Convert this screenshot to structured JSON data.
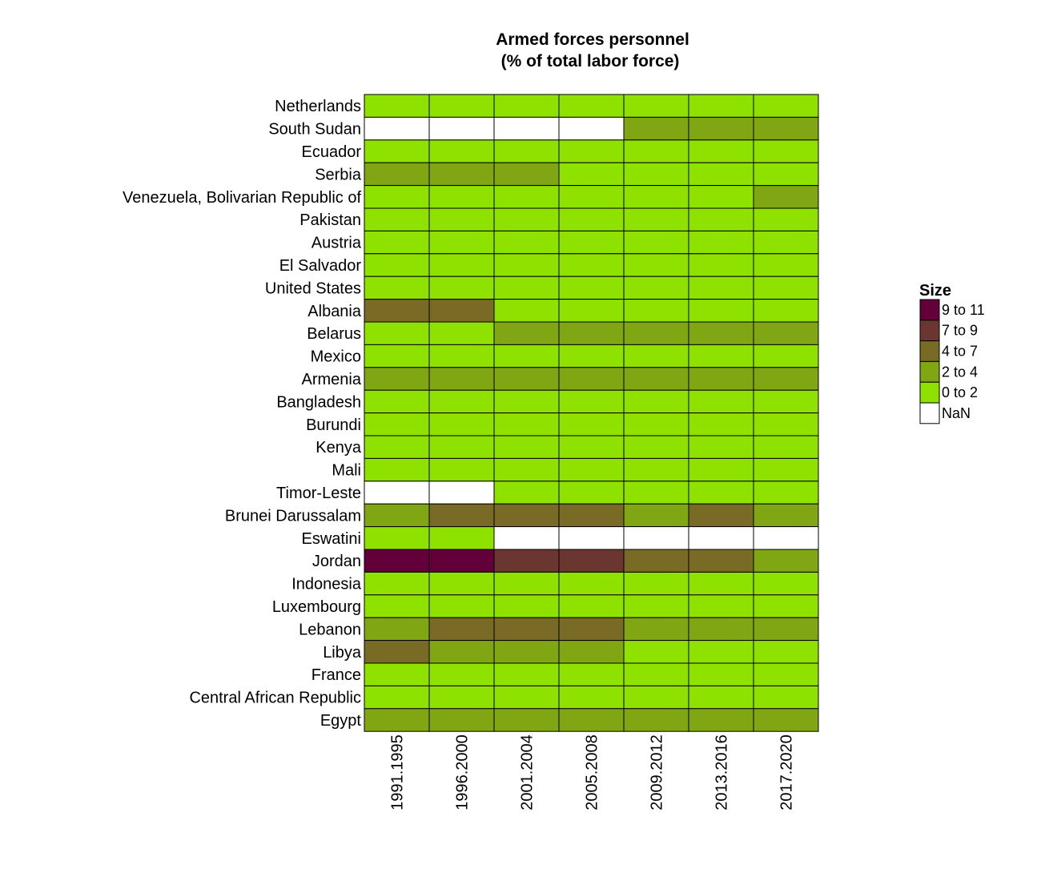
{
  "chart_data": {
    "type": "heatmap",
    "title_line1": "Armed forces personnel",
    "title_line2": "(% of total labor force)",
    "xlabel": "",
    "ylabel": "",
    "x_categories": [
      "1991.1995",
      "1996.2000",
      "2001.2004",
      "2005.2008",
      "2009.2012",
      "2013.2016",
      "2017.2020"
    ],
    "y_categories": [
      "Netherlands",
      "South Sudan",
      "Ecuador",
      "Serbia",
      "Venezuela, Bolivarian Republic of",
      "Pakistan",
      "Austria",
      "El Salvador",
      "United States",
      "Albania",
      "Belarus",
      "Mexico",
      "Armenia",
      "Bangladesh",
      "Burundi",
      "Kenya",
      "Mali",
      "Timor-Leste",
      "Brunei Darussalam",
      "Eswatini",
      "Jordan",
      "Indonesia",
      "Luxembourg",
      "Lebanon",
      "Libya",
      "France",
      "Central African Republic",
      "Egypt"
    ],
    "bin_labels": [
      "0 to 2",
      "2 to 4",
      "4 to 7",
      "7 to 9",
      "9 to 11",
      "NaN"
    ],
    "colors": {
      "0 to 2": "#8fe100",
      "2 to 4": "#80a614",
      "4 to 7": "#796b26",
      "7 to 9": "#6b3530",
      "9 to 11": "#630039",
      "NaN": "#ffffff"
    },
    "cells": [
      [
        "0 to 2",
        "0 to 2",
        "0 to 2",
        "0 to 2",
        "0 to 2",
        "0 to 2",
        "0 to 2"
      ],
      [
        "NaN",
        "NaN",
        "NaN",
        "NaN",
        "2 to 4",
        "2 to 4",
        "2 to 4"
      ],
      [
        "0 to 2",
        "0 to 2",
        "0 to 2",
        "0 to 2",
        "0 to 2",
        "0 to 2",
        "0 to 2"
      ],
      [
        "2 to 4",
        "2 to 4",
        "2 to 4",
        "0 to 2",
        "0 to 2",
        "0 to 2",
        "0 to 2"
      ],
      [
        "0 to 2",
        "0 to 2",
        "0 to 2",
        "0 to 2",
        "0 to 2",
        "0 to 2",
        "2 to 4"
      ],
      [
        "0 to 2",
        "0 to 2",
        "0 to 2",
        "0 to 2",
        "0 to 2",
        "0 to 2",
        "0 to 2"
      ],
      [
        "0 to 2",
        "0 to 2",
        "0 to 2",
        "0 to 2",
        "0 to 2",
        "0 to 2",
        "0 to 2"
      ],
      [
        "0 to 2",
        "0 to 2",
        "0 to 2",
        "0 to 2",
        "0 to 2",
        "0 to 2",
        "0 to 2"
      ],
      [
        "0 to 2",
        "0 to 2",
        "0 to 2",
        "0 to 2",
        "0 to 2",
        "0 to 2",
        "0 to 2"
      ],
      [
        "4 to 7",
        "4 to 7",
        "0 to 2",
        "0 to 2",
        "0 to 2",
        "0 to 2",
        "0 to 2"
      ],
      [
        "0 to 2",
        "0 to 2",
        "2 to 4",
        "2 to 4",
        "2 to 4",
        "2 to 4",
        "2 to 4"
      ],
      [
        "0 to 2",
        "0 to 2",
        "0 to 2",
        "0 to 2",
        "0 to 2",
        "0 to 2",
        "0 to 2"
      ],
      [
        "2 to 4",
        "2 to 4",
        "2 to 4",
        "2 to 4",
        "2 to 4",
        "2 to 4",
        "2 to 4"
      ],
      [
        "0 to 2",
        "0 to 2",
        "0 to 2",
        "0 to 2",
        "0 to 2",
        "0 to 2",
        "0 to 2"
      ],
      [
        "0 to 2",
        "0 to 2",
        "0 to 2",
        "0 to 2",
        "0 to 2",
        "0 to 2",
        "0 to 2"
      ],
      [
        "0 to 2",
        "0 to 2",
        "0 to 2",
        "0 to 2",
        "0 to 2",
        "0 to 2",
        "0 to 2"
      ],
      [
        "0 to 2",
        "0 to 2",
        "0 to 2",
        "0 to 2",
        "0 to 2",
        "0 to 2",
        "0 to 2"
      ],
      [
        "NaN",
        "NaN",
        "0 to 2",
        "0 to 2",
        "0 to 2",
        "0 to 2",
        "0 to 2"
      ],
      [
        "2 to 4",
        "4 to 7",
        "4 to 7",
        "4 to 7",
        "2 to 4",
        "4 to 7",
        "2 to 4"
      ],
      [
        "0 to 2",
        "0 to 2",
        "NaN",
        "NaN",
        "NaN",
        "NaN",
        "NaN"
      ],
      [
        "9 to 11",
        "9 to 11",
        "7 to 9",
        "7 to 9",
        "4 to 7",
        "4 to 7",
        "2 to 4"
      ],
      [
        "0 to 2",
        "0 to 2",
        "0 to 2",
        "0 to 2",
        "0 to 2",
        "0 to 2",
        "0 to 2"
      ],
      [
        "0 to 2",
        "0 to 2",
        "0 to 2",
        "0 to 2",
        "0 to 2",
        "0 to 2",
        "0 to 2"
      ],
      [
        "2 to 4",
        "4 to 7",
        "4 to 7",
        "4 to 7",
        "2 to 4",
        "2 to 4",
        "2 to 4"
      ],
      [
        "4 to 7",
        "2 to 4",
        "2 to 4",
        "2 to 4",
        "0 to 2",
        "0 to 2",
        "0 to 2"
      ],
      [
        "0 to 2",
        "0 to 2",
        "0 to 2",
        "0 to 2",
        "0 to 2",
        "0 to 2",
        "0 to 2"
      ],
      [
        "0 to 2",
        "0 to 2",
        "0 to 2",
        "0 to 2",
        "0 to 2",
        "0 to 2",
        "0 to 2"
      ],
      [
        "2 to 4",
        "2 to 4",
        "2 to 4",
        "2 to 4",
        "2 to 4",
        "2 to 4",
        "2 to 4"
      ]
    ],
    "grid": false,
    "legend": {
      "title": "Size",
      "placement": "right",
      "entries": [
        "9 to 11",
        "7 to 9",
        "4 to 7",
        "2 to 4",
        "0 to 2",
        "NaN"
      ]
    }
  }
}
